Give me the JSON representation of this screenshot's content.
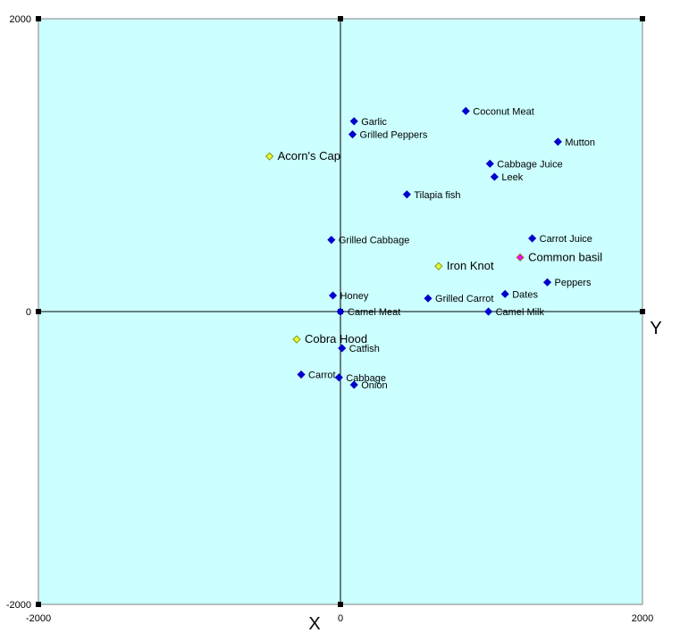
{
  "chart_data": {
    "type": "scatter",
    "xlim": [
      -2000,
      2000
    ],
    "ylim": [
      -2000,
      2000
    ],
    "grid": false,
    "plot_background": "#ccffff",
    "x_ticks": [
      "-2000",
      "0",
      "2000"
    ],
    "y_ticks": [
      "2000",
      "0",
      "-2000"
    ],
    "x_axis_title": "X",
    "y_axis_title": "Y",
    "points": [
      {
        "label": "Coconut Meat",
        "x": 830,
        "y": 1370,
        "color": "#0000cc",
        "style": "normal"
      },
      {
        "label": "Garlic",
        "x": 90,
        "y": 1300,
        "color": "#0000cc",
        "style": "normal"
      },
      {
        "label": "Grilled Peppers",
        "x": 80,
        "y": 1210,
        "color": "#0000cc",
        "style": "normal"
      },
      {
        "label": "Mutton",
        "x": 1440,
        "y": 1160,
        "color": "#0000cc",
        "style": "normal"
      },
      {
        "label": "Acorn's Cap",
        "x": -470,
        "y": 1060,
        "color": "#e0ff33",
        "style": "big"
      },
      {
        "label": "Cabbage Juice",
        "x": 990,
        "y": 1010,
        "color": "#0000cc",
        "style": "normal"
      },
      {
        "label": "Leek",
        "x": 1020,
        "y": 920,
        "color": "#0000cc",
        "style": "normal"
      },
      {
        "label": "Tilapia fish",
        "x": 440,
        "y": 800,
        "color": "#0000cc",
        "style": "normal"
      },
      {
        "label": "Grilled Cabbage",
        "x": -60,
        "y": 490,
        "color": "#0000cc",
        "style": "normal"
      },
      {
        "label": "Carrot Juice",
        "x": 1270,
        "y": 500,
        "color": "#0000cc",
        "style": "normal"
      },
      {
        "label": "Common basil",
        "x": 1190,
        "y": 370,
        "color": "#ff00ff",
        "style": "big"
      },
      {
        "label": "Iron Knot",
        "x": 650,
        "y": 310,
        "color": "#e0ff33",
        "style": "big"
      },
      {
        "label": "Peppers",
        "x": 1370,
        "y": 200,
        "color": "#0000cc",
        "style": "normal"
      },
      {
        "label": "Honey",
        "x": -50,
        "y": 110,
        "color": "#0000cc",
        "style": "normal"
      },
      {
        "label": "Dates",
        "x": 1090,
        "y": 120,
        "color": "#0000cc",
        "style": "normal"
      },
      {
        "label": "Grilled Carrot",
        "x": 580,
        "y": 90,
        "color": "#0000cc",
        "style": "normal"
      },
      {
        "label": "Camel Meat",
        "x": 0,
        "y": 0,
        "color": "#0000cc",
        "style": "normal"
      },
      {
        "label": "Camel Milk",
        "x": 980,
        "y": 0,
        "color": "#0000cc",
        "style": "normal"
      },
      {
        "label": "Cobra Hood",
        "x": -290,
        "y": -190,
        "color": "#e0ff33",
        "style": "big"
      },
      {
        "label": "Catfish",
        "x": 10,
        "y": -250,
        "color": "#0000cc",
        "style": "normal"
      },
      {
        "label": "Carrot",
        "x": -260,
        "y": -430,
        "color": "#0000cc",
        "style": "normal"
      },
      {
        "label": "Cabbage",
        "x": -10,
        "y": -450,
        "color": "#0000cc",
        "style": "normal"
      },
      {
        "label": "Onion",
        "x": 90,
        "y": -500,
        "color": "#0000cc",
        "style": "normal"
      }
    ]
  }
}
